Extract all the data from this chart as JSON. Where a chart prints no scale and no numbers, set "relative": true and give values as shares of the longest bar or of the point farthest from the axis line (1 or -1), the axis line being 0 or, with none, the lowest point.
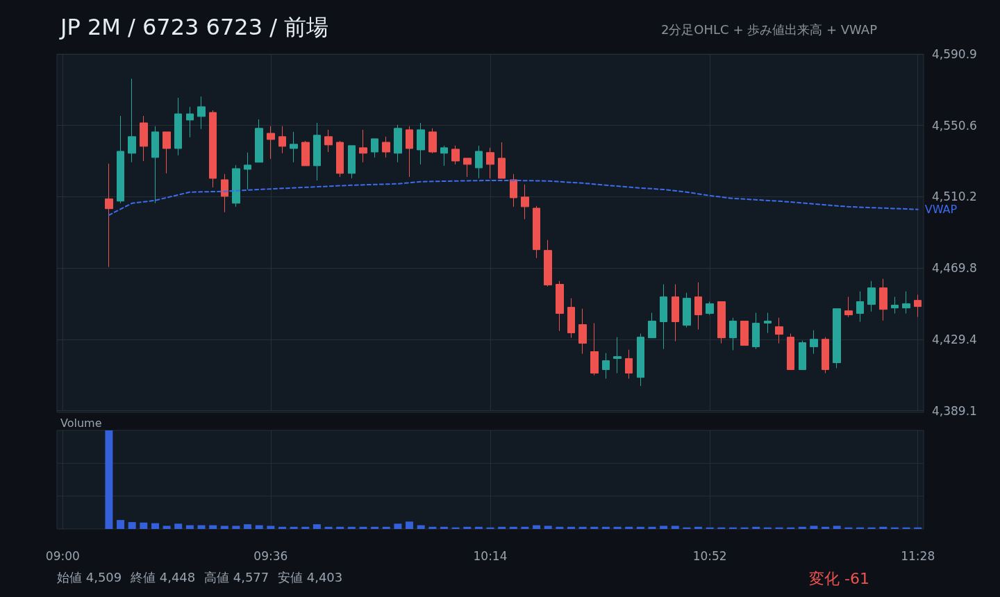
{
  "chart_data": [
    {
      "type": "candlestick",
      "title": "JP 2M / 6723 6723 / 前場",
      "subtitle": "2分足OHLC + 歩み値出来高 + VWAP",
      "x": [
        9.1333,
        9.1667,
        9.2,
        9.2333,
        9.2667,
        9.3,
        9.3333,
        9.3667,
        9.4,
        9.4333,
        9.4667,
        9.5,
        9.5333,
        9.5667,
        9.6,
        9.6333,
        9.6667,
        9.7,
        9.7333,
        9.7667,
        9.8,
        9.8333,
        9.8667,
        9.9,
        9.9333,
        9.9667,
        10,
        10.0333,
        10.0667,
        10.1,
        10.1333,
        10.1667,
        10.2,
        10.2333,
        10.2667,
        10.3,
        10.3333,
        10.3667,
        10.4,
        10.4333,
        10.4667,
        10.5,
        10.5333,
        10.5667,
        10.6,
        10.6333,
        10.6667,
        10.7,
        10.7333,
        10.7667,
        10.8,
        10.8333,
        10.8667,
        10.9,
        10.9333,
        10.9667,
        11,
        11.0333,
        11.0667,
        11.1,
        11.1333,
        11.1667,
        11.2,
        11.2333,
        11.2667,
        11.3,
        11.3333,
        11.3667,
        11.4,
        11.4333,
        11.4667
      ],
      "ohlc": [
        [
          4509.0,
          4528.9,
          4470.4,
          4503.4
        ],
        [
          4507.7,
          4555.9,
          4506.5,
          4535.9
        ],
        [
          4534.8,
          4577.0,
          4529.7,
          4544.2
        ],
        [
          4552.0,
          4555.9,
          4530.4,
          4538.7
        ],
        [
          4532.4,
          4550.1,
          4506.5,
          4546.9
        ],
        [
          4546.9,
          4546.9,
          4523.4,
          4537.5
        ],
        [
          4537.5,
          4566.2,
          4533.6,
          4557.1
        ],
        [
          4553.6,
          4561.1,
          4543.8,
          4557.1
        ],
        [
          4555.6,
          4566.9,
          4548.5,
          4561.1
        ],
        [
          4557.9,
          4559.1,
          4515.5,
          4520.6
        ],
        [
          4519.8,
          4523.0,
          4501.4,
          4510.4
        ],
        [
          4506.5,
          4528.1,
          4504.5,
          4526.1
        ],
        [
          4525.7,
          4535.2,
          4514.3,
          4528.1
        ],
        [
          4529.7,
          4554.0,
          4529.7,
          4548.9
        ],
        [
          4546.1,
          4550.1,
          4531.6,
          4542.6
        ],
        [
          4544.2,
          4550.1,
          4534.8,
          4538.7
        ],
        [
          4537.5,
          4546.9,
          4529.7,
          4539.9
        ],
        [
          4541.0,
          4541.8,
          4527.7,
          4527.7
        ],
        [
          4527.7,
          4552.0,
          4519.4,
          4545.0
        ],
        [
          4544.2,
          4548.1,
          4535.5,
          4539.5
        ],
        [
          4541.0,
          4541.8,
          4521.4,
          4523.4
        ],
        [
          4523.4,
          4539.1,
          4520.6,
          4539.1
        ],
        [
          4537.9,
          4548.1,
          4529.7,
          4534.8
        ],
        [
          4535.5,
          4543.0,
          4532.4,
          4543.0
        ],
        [
          4541.0,
          4544.2,
          4532.4,
          4535.5
        ],
        [
          4534.8,
          4550.9,
          4529.7,
          4548.9
        ],
        [
          4548.1,
          4550.1,
          4521.4,
          4537.5
        ],
        [
          4536.7,
          4552.0,
          4528.5,
          4548.1
        ],
        [
          4546.9,
          4548.9,
          4534.8,
          4535.5
        ],
        [
          4534.8,
          4539.1,
          4527.7,
          4537.9
        ],
        [
          4537.1,
          4539.1,
          4528.5,
          4530.4
        ],
        [
          4532.0,
          4532.0,
          4521.4,
          4528.5
        ],
        [
          4526.5,
          4539.1,
          4520.6,
          4535.9
        ],
        [
          4535.2,
          4537.9,
          4520.6,
          4528.5
        ],
        [
          4532.0,
          4541.0,
          4520.6,
          4520.6
        ],
        [
          4519.8,
          4523.0,
          4504.5,
          4509.6
        ],
        [
          4510.0,
          4517.1,
          4497.5,
          4504.5
        ],
        [
          4503.7,
          4504.9,
          4475.5,
          4480.2
        ],
        [
          4479.8,
          4485.7,
          4459.4,
          4460.2
        ],
        [
          4460.6,
          4462.5,
          4434.2,
          4444.1
        ],
        [
          4447.6,
          4452.7,
          4430.3,
          4433.1
        ],
        [
          4437.8,
          4446.8,
          4421.3,
          4427.2
        ],
        [
          4422.5,
          4438.6,
          4409.1,
          4410.3
        ],
        [
          4412.3,
          4421.7,
          4407.2,
          4417.4
        ],
        [
          4418.6,
          4430.7,
          4410.3,
          4419.7
        ],
        [
          4418.6,
          4423.6,
          4407.2,
          4410.3
        ],
        [
          4407.9,
          4432.7,
          4403.0,
          4430.7
        ],
        [
          4430.3,
          4444.5,
          4430.3,
          4439.8
        ],
        [
          4439.4,
          4460.6,
          4424.0,
          4453.5
        ],
        [
          4453.5,
          4460.6,
          4428.4,
          4439.4
        ],
        [
          4437.4,
          4455.8,
          4436.2,
          4452.7
        ],
        [
          4453.5,
          4461.7,
          4435.0,
          4443.3
        ],
        [
          4444.1,
          4450.8,
          4443.3,
          4449.6
        ],
        [
          4450.8,
          4450.8,
          4427.2,
          4430.3
        ],
        [
          4430.3,
          4441.7,
          4423.3,
          4439.8
        ],
        [
          4439.8,
          4439.8,
          4426.0,
          4426.0
        ],
        [
          4425.2,
          4444.5,
          4424.0,
          4438.6
        ],
        [
          4438.6,
          4444.5,
          4433.1,
          4439.8
        ],
        [
          4436.6,
          4441.7,
          4427.2,
          4432.3
        ],
        [
          4430.7,
          4432.7,
          4412.3,
          4412.3
        ],
        [
          4412.3,
          4428.8,
          4412.3,
          4427.6
        ],
        [
          4425.2,
          4434.6,
          4421.3,
          4429.5
        ],
        [
          4429.5,
          4430.7,
          4410.3,
          4412.3
        ],
        [
          4416.2,
          4446.8,
          4413.1,
          4446.8
        ],
        [
          4445.6,
          4453.5,
          4442.1,
          4443.3
        ],
        [
          4444.1,
          4456.6,
          4439.4,
          4450.8
        ],
        [
          4449.2,
          4462.5,
          4445.2,
          4458.6
        ],
        [
          4458.6,
          4463.7,
          4440.1,
          4446.4
        ],
        [
          4447.2,
          4453.5,
          4444.1,
          4448.8
        ],
        [
          4447.2,
          4456.6,
          4444.1,
          4449.6
        ],
        [
          4451.5,
          4454.7,
          4442.1,
          4448.0
        ]
      ],
      "colors": [
        "#ef5350",
        "#26a69a",
        "#26a69a",
        "#ef5350",
        "#26a69a",
        "#ef5350",
        "#26a69a",
        "#26a69a",
        "#26a69a",
        "#ef5350",
        "#ef5350",
        "#26a69a",
        "#26a69a",
        "#26a69a",
        "#ef5350",
        "#ef5350",
        "#26a69a",
        "#ef5350",
        "#26a69a",
        "#ef5350",
        "#ef5350",
        "#26a69a",
        "#ef5350",
        "#26a69a",
        "#ef5350",
        "#26a69a",
        "#ef5350",
        "#26a69a",
        "#ef5350",
        "#26a69a",
        "#ef5350",
        "#ef5350",
        "#26a69a",
        "#ef5350",
        "#ef5350",
        "#ef5350",
        "#ef5350",
        "#ef5350",
        "#ef5350",
        "#ef5350",
        "#ef5350",
        "#ef5350",
        "#ef5350",
        "#26a69a",
        "#26a69a",
        "#ef5350",
        "#26a69a",
        "#26a69a",
        "#26a69a",
        "#ef5350",
        "#26a69a",
        "#ef5350",
        "#26a69a",
        "#ef5350",
        "#26a69a",
        "#ef5350",
        "#26a69a",
        "#26a69a",
        "#ef5350",
        "#ef5350",
        "#26a69a",
        "#26a69a",
        "#ef5350",
        "#26a69a",
        "#ef5350",
        "#26a69a",
        "#26a69a",
        "#ef5350",
        "#26a69a",
        "#26a69a",
        "#ef5350"
      ],
      "series": [
        {
          "type": "line",
          "name": "VWAP",
          "color": "#3d6cf0",
          "line_style": "dashed",
          "marker": "none",
          "x": [
            9.1333,
            9.2,
            9.2667,
            9.3667,
            9.4667,
            9.5667,
            9.7,
            9.8333,
            9.9667,
            10.0333,
            10.1333,
            10.2333,
            10.3,
            10.4,
            10.5,
            10.5667,
            10.6667,
            10.7333,
            10.8,
            10.8667,
            10.9333,
            11.0667,
            11.2667,
            11.4667
          ],
          "values": [
            4499.8,
            4506.5,
            4508.1,
            4512.8,
            4513.2,
            4514.3,
            4515.5,
            4516.7,
            4517.5,
            4518.7,
            4519.1,
            4519.4,
            4519.4,
            4519.1,
            4517.9,
            4516.7,
            4515.1,
            4514.3,
            4512.8,
            4510.8,
            4509.2,
            4507.7,
            4504.5,
            4503.0
          ]
        }
      ],
      "xlim": [
        8.9833,
        11.4833
      ],
      "xticks": [
        {
          "value": 9,
          "label": null
        },
        {
          "value": 9.6,
          "label": null
        },
        {
          "value": 10.2333,
          "label": null
        },
        {
          "value": 10.8667,
          "label": null
        },
        {
          "value": 11.4667,
          "label": null
        }
      ],
      "ylim": [
        4389.1,
        4590.9
      ],
      "yticks": [
        {
          "value": 4389.1,
          "label": "4,389.1"
        },
        {
          "value": 4429.4,
          "label": "4,429.4"
        },
        {
          "value": 4469.8,
          "label": "4,469.8"
        },
        {
          "value": 4510.2,
          "label": "4,510.2"
        },
        {
          "value": 4550.6,
          "label": "4,550.6"
        },
        {
          "value": 4590.9,
          "label": "4,590.9"
        }
      ],
      "grid": true,
      "tick_labels": "y"
    },
    {
      "type": "bar",
      "title": "Volume",
      "relative": true,
      "x": [
        9.1333,
        9.1667,
        9.2,
        9.2333,
        9.2667,
        9.3,
        9.3333,
        9.3667,
        9.4,
        9.4333,
        9.4667,
        9.5,
        9.5333,
        9.5667,
        9.6,
        9.6333,
        9.6667,
        9.7,
        9.7333,
        9.7667,
        9.8,
        9.8333,
        9.8667,
        9.9,
        9.9333,
        9.9667,
        10,
        10.0333,
        10.0667,
        10.1,
        10.1333,
        10.1667,
        10.2,
        10.2333,
        10.2667,
        10.3,
        10.3333,
        10.3667,
        10.4,
        10.4333,
        10.4667,
        10.5,
        10.5333,
        10.5667,
        10.6,
        10.6333,
        10.6667,
        10.7,
        10.7333,
        10.7667,
        10.8,
        10.8333,
        10.8667,
        10.9,
        10.9333,
        10.9667,
        11,
        11.0333,
        11.0667,
        11.1,
        11.1333,
        11.1667,
        11.2,
        11.2333,
        11.2667,
        11.3,
        11.3333,
        11.3667,
        11.4,
        11.4333,
        11.4667
      ],
      "values": [
        1,
        0.091,
        0.07,
        0.065,
        0.059,
        0.032,
        0.054,
        0.038,
        0.038,
        0.038,
        0.032,
        0.032,
        0.048,
        0.038,
        0.032,
        0.022,
        0.022,
        0.022,
        0.048,
        0.022,
        0.022,
        0.022,
        0.022,
        0.022,
        0.022,
        0.054,
        0.075,
        0.038,
        0.022,
        0.022,
        0.016,
        0.022,
        0.022,
        0.016,
        0.022,
        0.022,
        0.022,
        0.038,
        0.032,
        0.022,
        0.022,
        0.022,
        0.022,
        0.022,
        0.022,
        0.022,
        0.022,
        0.022,
        0.032,
        0.032,
        0.016,
        0.022,
        0.016,
        0.016,
        0.016,
        0.016,
        0.022,
        0.016,
        0.016,
        0.016,
        0.022,
        0.032,
        0.022,
        0.032,
        0.016,
        0.016,
        0.016,
        0.022,
        0.016,
        0.016,
        0.016
      ],
      "color": "#3461d9",
      "xlim": [
        8.9833,
        11.4833
      ],
      "xticks": [
        {
          "value": 9,
          "label": "09:00"
        },
        {
          "value": 9.6,
          "label": "09:36"
        },
        {
          "value": 10.2333,
          "label": "10:14"
        },
        {
          "value": 10.8667,
          "label": "10:52"
        },
        {
          "value": 11.4667,
          "label": "11:28"
        }
      ],
      "grid": true,
      "tick_labels": "x",
      "annotations": [
        "始値 4,509",
        "終値 4,448",
        "高値 4,577",
        "安値 4,403",
        "変化 -61"
      ]
    }
  ]
}
